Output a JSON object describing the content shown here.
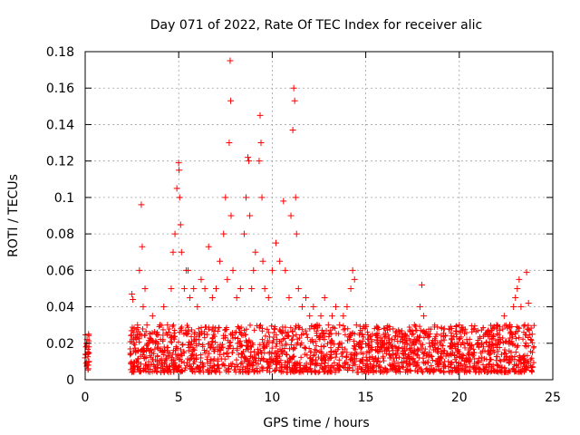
{
  "chart_data": {
    "type": "scatter",
    "title": "Day 071 of 2022, Rate Of TEC Index for receiver alic",
    "xlabel": "GPS time / hours",
    "ylabel": "ROTI / TECUs",
    "xlim": [
      0,
      25
    ],
    "ylim": [
      0,
      0.18
    ],
    "xticks": [
      0,
      5,
      10,
      15,
      20,
      25
    ],
    "xtick_labels": [
      "0",
      "5",
      "10",
      "15",
      "20",
      "25"
    ],
    "yticks": [
      0,
      0.02,
      0.04,
      0.06,
      0.08,
      0.1,
      0.12,
      0.14,
      0.16,
      0.18
    ],
    "ytick_labels": [
      "0",
      "0.02",
      "0.04",
      "0.06",
      "0.08",
      "0.1",
      "0.12",
      "0.14",
      "0.16",
      "0.18"
    ],
    "grid": true,
    "marker": "+",
    "color": "#ff0000",
    "series": [
      {
        "name": "ROTI",
        "points": [
          [
            0.0,
            0.012
          ],
          [
            0.05,
            0.018
          ],
          [
            0.1,
            0.022
          ],
          [
            0.12,
            0.008
          ],
          [
            0.15,
            0.015
          ],
          [
            0.18,
            0.025
          ],
          [
            0.2,
            0.01
          ],
          [
            0.08,
            0.02
          ],
          [
            0.03,
            0.014
          ],
          [
            0.16,
            0.006
          ],
          [
            2.5,
            0.047
          ],
          [
            2.55,
            0.044
          ],
          [
            2.6,
            0.02
          ],
          [
            2.7,
            0.015
          ],
          [
            2.8,
            0.03
          ],
          [
            2.9,
            0.06
          ],
          [
            3.0,
            0.096
          ],
          [
            3.05,
            0.073
          ],
          [
            3.1,
            0.04
          ],
          [
            3.2,
            0.05
          ],
          [
            3.3,
            0.03
          ],
          [
            3.4,
            0.02
          ],
          [
            3.6,
            0.035
          ],
          [
            3.8,
            0.025
          ],
          [
            4.0,
            0.03
          ],
          [
            4.2,
            0.04
          ],
          [
            4.4,
            0.03
          ],
          [
            4.6,
            0.05
          ],
          [
            4.7,
            0.07
          ],
          [
            4.8,
            0.08
          ],
          [
            4.9,
            0.105
          ],
          [
            5.0,
            0.119
          ],
          [
            5.02,
            0.115
          ],
          [
            5.05,
            0.1
          ],
          [
            5.1,
            0.085
          ],
          [
            5.15,
            0.07
          ],
          [
            5.3,
            0.05
          ],
          [
            5.4,
            0.06
          ],
          [
            5.5,
            0.06
          ],
          [
            5.6,
            0.045
          ],
          [
            5.8,
            0.05
          ],
          [
            6.0,
            0.04
          ],
          [
            6.2,
            0.055
          ],
          [
            6.4,
            0.05
          ],
          [
            6.6,
            0.073
          ],
          [
            6.8,
            0.045
          ],
          [
            7.0,
            0.05
          ],
          [
            7.2,
            0.065
          ],
          [
            7.4,
            0.08
          ],
          [
            7.5,
            0.1
          ],
          [
            7.6,
            0.055
          ],
          [
            7.7,
            0.13
          ],
          [
            7.75,
            0.175
          ],
          [
            7.78,
            0.153
          ],
          [
            7.8,
            0.09
          ],
          [
            7.9,
            0.06
          ],
          [
            8.1,
            0.045
          ],
          [
            8.3,
            0.05
          ],
          [
            8.5,
            0.08
          ],
          [
            8.6,
            0.1
          ],
          [
            8.7,
            0.122
          ],
          [
            8.75,
            0.12
          ],
          [
            8.8,
            0.09
          ],
          [
            8.9,
            0.05
          ],
          [
            9.0,
            0.06
          ],
          [
            9.1,
            0.07
          ],
          [
            9.3,
            0.12
          ],
          [
            9.35,
            0.145
          ],
          [
            9.4,
            0.13
          ],
          [
            9.45,
            0.1
          ],
          [
            9.5,
            0.065
          ],
          [
            9.6,
            0.05
          ],
          [
            9.8,
            0.045
          ],
          [
            10.0,
            0.06
          ],
          [
            10.2,
            0.075
          ],
          [
            10.4,
            0.065
          ],
          [
            10.6,
            0.098
          ],
          [
            10.7,
            0.06
          ],
          [
            10.9,
            0.045
          ],
          [
            11.0,
            0.09
          ],
          [
            11.1,
            0.137
          ],
          [
            11.15,
            0.16
          ],
          [
            11.2,
            0.153
          ],
          [
            11.25,
            0.1
          ],
          [
            11.3,
            0.08
          ],
          [
            11.4,
            0.05
          ],
          [
            11.6,
            0.04
          ],
          [
            11.8,
            0.045
          ],
          [
            12.0,
            0.035
          ],
          [
            12.2,
            0.04
          ],
          [
            12.4,
            0.03
          ],
          [
            12.6,
            0.035
          ],
          [
            12.8,
            0.045
          ],
          [
            13.0,
            0.03
          ],
          [
            13.2,
            0.035
          ],
          [
            13.4,
            0.04
          ],
          [
            13.6,
            0.03
          ],
          [
            13.8,
            0.035
          ],
          [
            14.0,
            0.04
          ],
          [
            14.2,
            0.05
          ],
          [
            14.3,
            0.06
          ],
          [
            14.4,
            0.055
          ],
          [
            14.5,
            0.03
          ],
          [
            14.8,
            0.025
          ],
          [
            15.0,
            0.03
          ],
          [
            15.3,
            0.022
          ],
          [
            15.6,
            0.025
          ],
          [
            16.0,
            0.028
          ],
          [
            16.4,
            0.022
          ],
          [
            16.8,
            0.025
          ],
          [
            17.2,
            0.02
          ],
          [
            17.6,
            0.03
          ],
          [
            17.9,
            0.04
          ],
          [
            18.0,
            0.052
          ],
          [
            18.1,
            0.035
          ],
          [
            18.4,
            0.02
          ],
          [
            18.8,
            0.025
          ],
          [
            19.2,
            0.028
          ],
          [
            19.6,
            0.022
          ],
          [
            20.0,
            0.03
          ],
          [
            20.4,
            0.022
          ],
          [
            20.8,
            0.028
          ],
          [
            21.2,
            0.02
          ],
          [
            21.6,
            0.025
          ],
          [
            22.0,
            0.03
          ],
          [
            22.4,
            0.035
          ],
          [
            22.7,
            0.03
          ],
          [
            22.9,
            0.04
          ],
          [
            23.0,
            0.045
          ],
          [
            23.1,
            0.05
          ],
          [
            23.2,
            0.055
          ],
          [
            23.3,
            0.04
          ],
          [
            23.5,
            0.03
          ],
          [
            23.6,
            0.059
          ],
          [
            23.7,
            0.042
          ],
          [
            23.9,
            0.025
          ]
        ]
      }
    ]
  }
}
